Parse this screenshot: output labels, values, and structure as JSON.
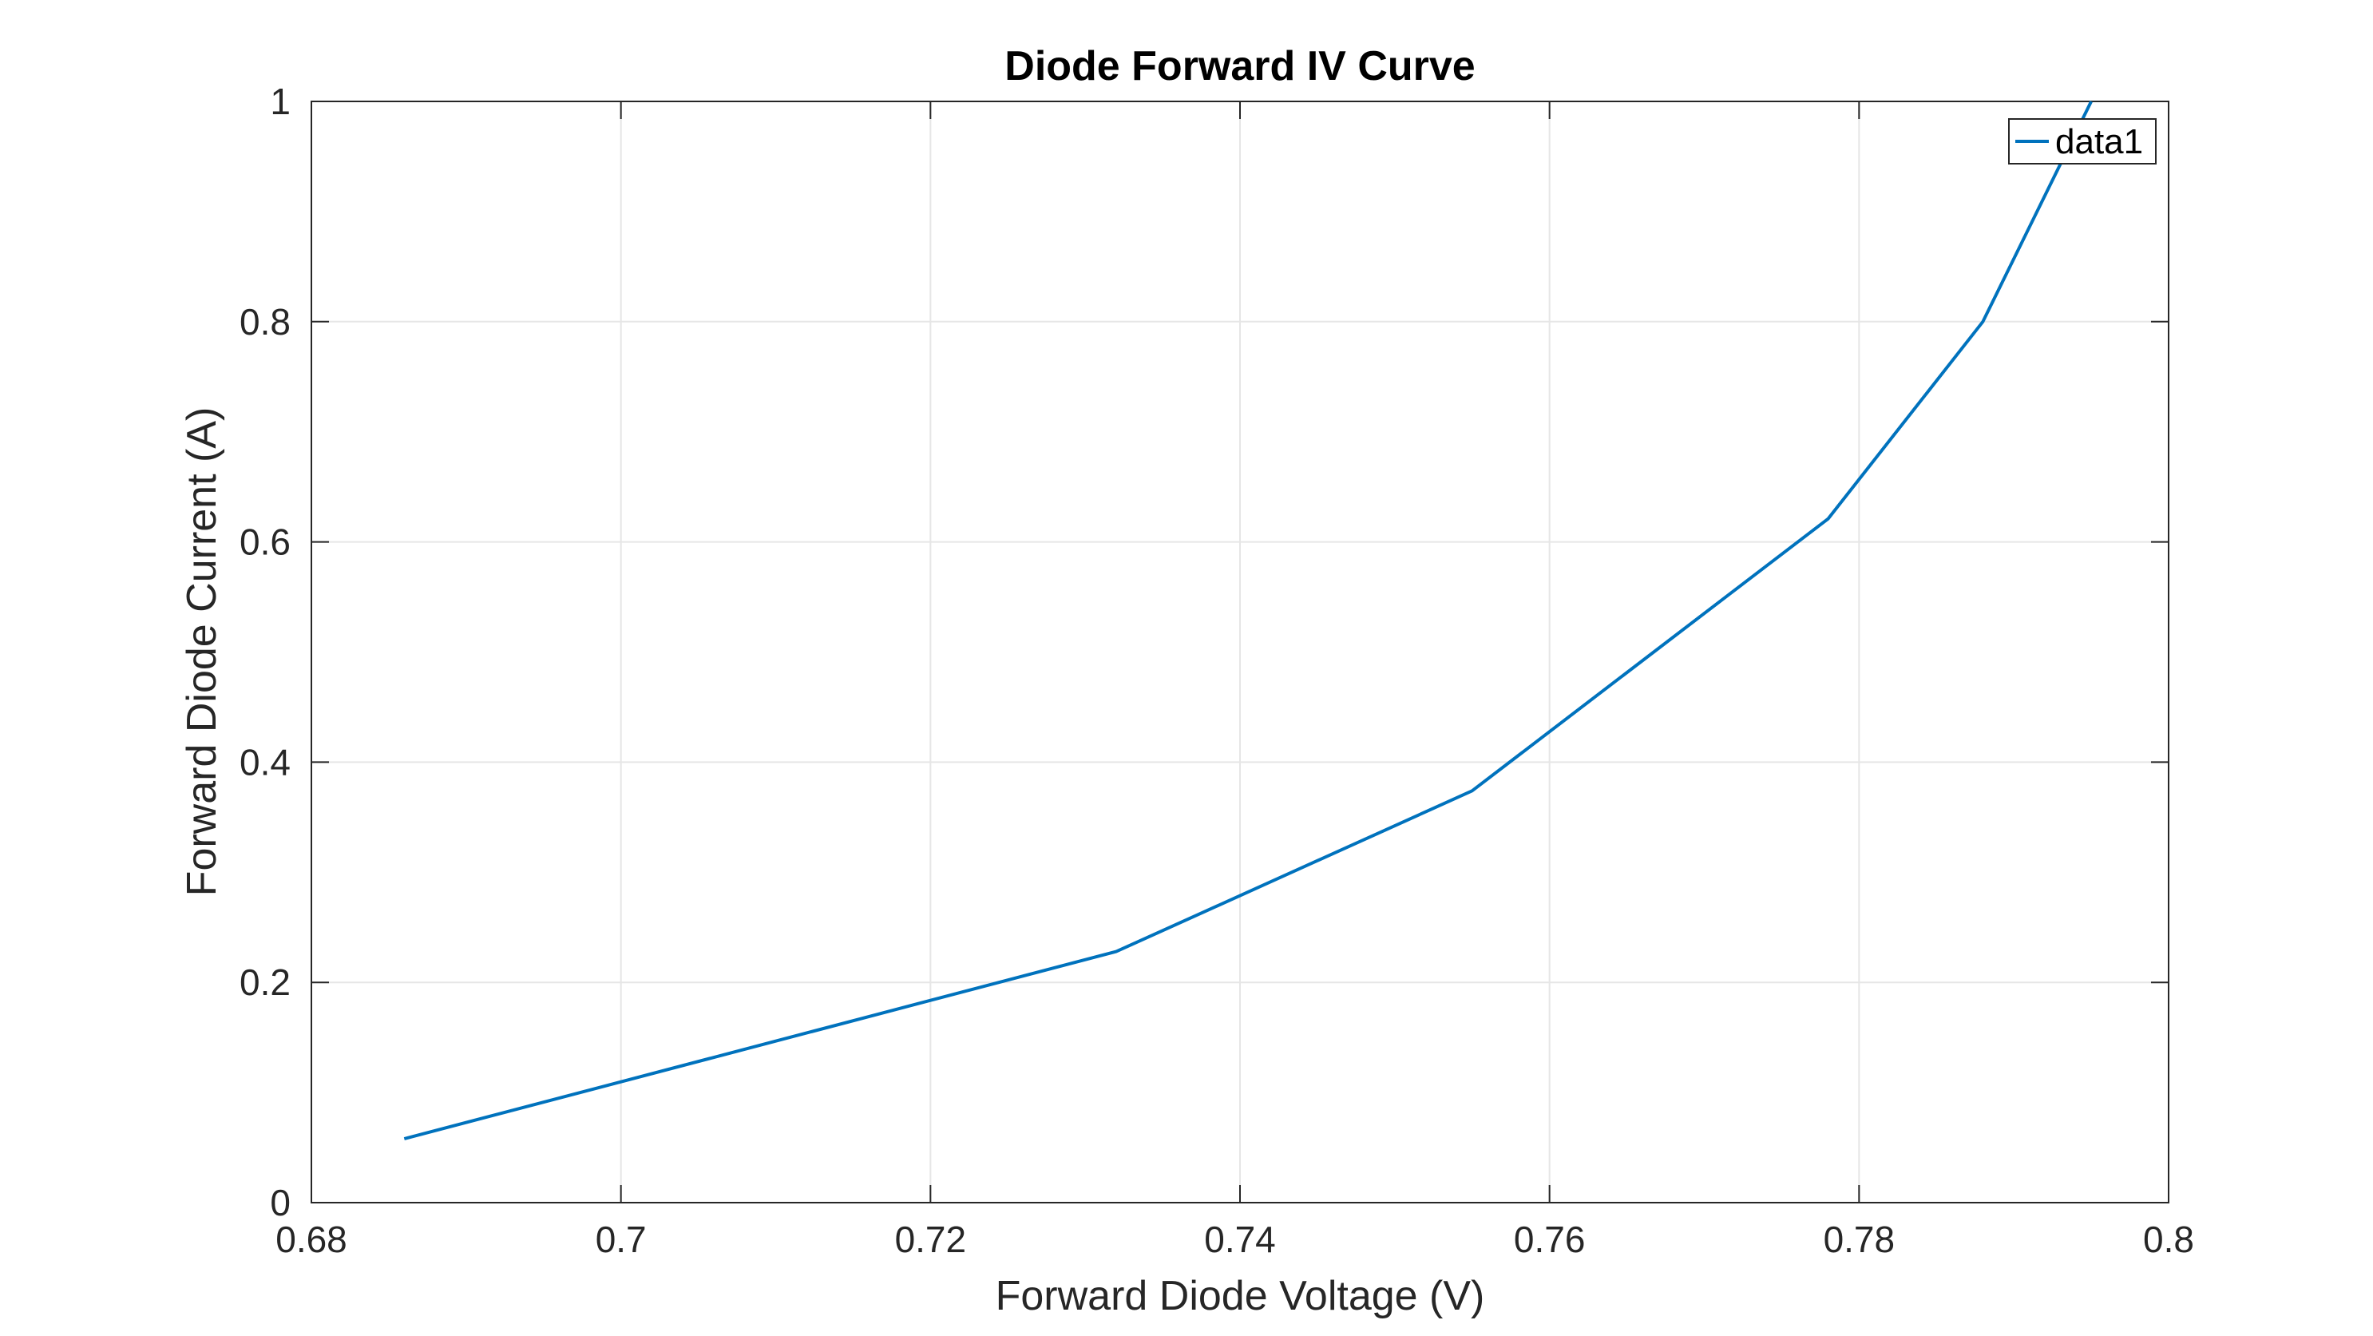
{
  "chart_data": {
    "type": "line",
    "title": "Diode Forward IV Curve",
    "xlabel": "Forward Diode Voltage (V)",
    "ylabel": "Forward Diode Current (A)",
    "xlim": [
      0.68,
      0.8
    ],
    "ylim": [
      0,
      1
    ],
    "x_ticks": [
      0.68,
      0.7,
      0.72,
      0.74,
      0.76,
      0.78,
      0.8
    ],
    "x_tick_labels": [
      "0.68",
      "0.7",
      "0.72",
      "0.74",
      "0.76",
      "0.78",
      "0.8"
    ],
    "y_ticks": [
      0,
      0.2,
      0.4,
      0.6,
      0.8,
      1
    ],
    "y_tick_labels": [
      "0",
      "0.2",
      "0.4",
      "0.6",
      "0.8",
      "1"
    ],
    "grid": true,
    "legend_position": "top-right",
    "series": [
      {
        "name": "data1",
        "color": "#0072BD",
        "x": [
          0.686,
          0.732,
          0.755,
          0.778,
          0.788,
          0.795
        ],
        "y": [
          0.058,
          0.228,
          0.374,
          0.621,
          0.8,
          1.0
        ]
      }
    ]
  }
}
